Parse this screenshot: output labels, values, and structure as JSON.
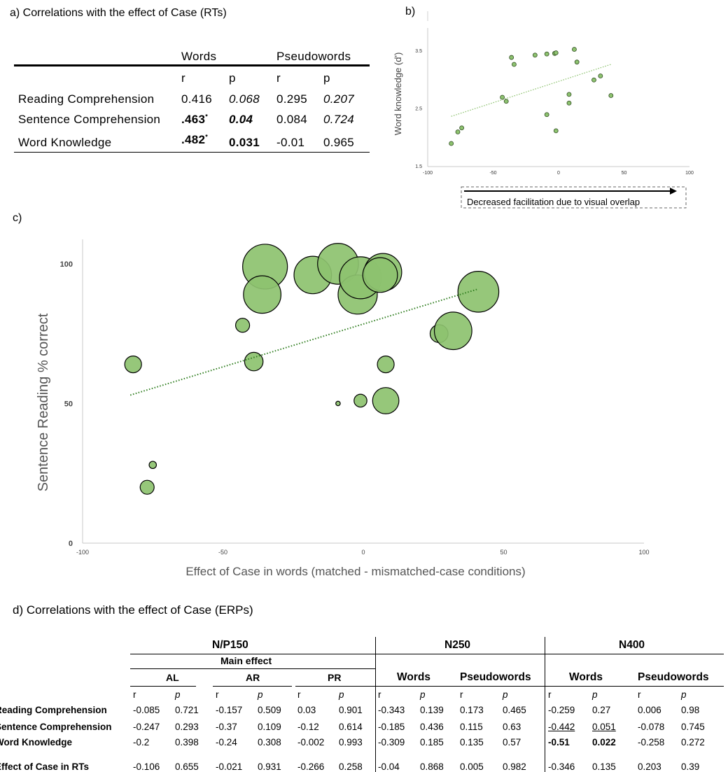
{
  "panel_a": {
    "title": "a) Correlations with the effect of Case (RTs)",
    "group_headers": [
      "Words",
      "Pseudowords"
    ],
    "col_headers": [
      "r",
      "p",
      "r",
      "p"
    ],
    "rows": [
      {
        "label": "Reading Comprehension",
        "cells": [
          "0.416",
          "0.068",
          "0.295",
          "0.207"
        ]
      },
      {
        "label": "Sentence Comprehension",
        "cells": [
          ".463",
          "0.04",
          "0.084",
          "0.724"
        ],
        "sup": "*"
      },
      {
        "label": "Word Knowledge",
        "cells": [
          ".482",
          "0.031",
          "-0.01",
          "0.965"
        ],
        "sup": "*"
      }
    ]
  },
  "panel_b": {
    "label": "b)",
    "ylabel": "Word knowledge (d')",
    "arrow_label": "Decreased facilitation due to visual overlap",
    "xticks": [
      "-100",
      "-50",
      "0",
      "50",
      "100"
    ],
    "yticks": [
      "1.5",
      "2.5",
      "3.5"
    ]
  },
  "panel_c": {
    "label": "c)",
    "ylabel": "Sentence  Reading % correct",
    "xlabel": "Effect of Case in words (matched - mismatched-case conditions)",
    "xticks": [
      "-100",
      "-50",
      "0",
      "50",
      "100"
    ],
    "yticks": [
      "0",
      "50",
      "100"
    ]
  },
  "chart_data": [
    {
      "type": "scatter",
      "title": "",
      "xlabel": "",
      "ylabel": "Word knowledge (d')",
      "xlim": [
        -100,
        100
      ],
      "ylim": [
        1.5,
        3.9
      ],
      "grid": false,
      "points": [
        {
          "x": -82,
          "y": 1.9
        },
        {
          "x": -77,
          "y": 2.1
        },
        {
          "x": -74,
          "y": 2.17
        },
        {
          "x": -43,
          "y": 2.7
        },
        {
          "x": -40,
          "y": 2.63
        },
        {
          "x": -36,
          "y": 3.39
        },
        {
          "x": -34,
          "y": 3.27
        },
        {
          "x": -18,
          "y": 3.43
        },
        {
          "x": -9,
          "y": 3.45
        },
        {
          "x": -3,
          "y": 3.46
        },
        {
          "x": -2,
          "y": 3.47
        },
        {
          "x": 12,
          "y": 3.53
        },
        {
          "x": 14,
          "y": 3.31
        },
        {
          "x": 27,
          "y": 3.0
        },
        {
          "x": 32,
          "y": 3.07
        },
        {
          "x": 40,
          "y": 2.73
        },
        {
          "x": 8,
          "y": 2.75
        },
        {
          "x": 8,
          "y": 2.6
        },
        {
          "x": -9,
          "y": 2.4
        },
        {
          "x": -2,
          "y": 2.12
        }
      ],
      "trendline": {
        "x": [
          -82,
          40
        ],
        "y": [
          2.37,
          3.27
        ]
      },
      "color": "#8dc26f"
    },
    {
      "type": "scatter",
      "title": "",
      "xlabel": "Effect of Case in words (matched - mismatched-case conditions)",
      "ylabel": "Sentence  Reading % correct",
      "xlim": [
        -100,
        100
      ],
      "ylim": [
        0,
        108
      ],
      "grid": false,
      "points": [
        {
          "x": -82,
          "y": 64,
          "size": 3
        },
        {
          "x": -77,
          "y": 20,
          "size": 2.5
        },
        {
          "x": -75,
          "y": 28,
          "size": 1.3
        },
        {
          "x": -43,
          "y": 78,
          "size": 2.5
        },
        {
          "x": -39,
          "y": 65,
          "size": 3.3
        },
        {
          "x": -35,
          "y": 99,
          "size": 8
        },
        {
          "x": -36,
          "y": 89,
          "size": 6.7
        },
        {
          "x": -18,
          "y": 96,
          "size": 6.7
        },
        {
          "x": -9,
          "y": 100,
          "size": 7.3
        },
        {
          "x": -2,
          "y": 89,
          "size": 7
        },
        {
          "x": -1,
          "y": 95,
          "size": 7.5
        },
        {
          "x": 7,
          "y": 97,
          "size": 6.7
        },
        {
          "x": 6,
          "y": 96,
          "size": 6.2
        },
        {
          "x": 8,
          "y": 64,
          "size": 3
        },
        {
          "x": 8,
          "y": 51,
          "size": 4.7
        },
        {
          "x": -1,
          "y": 51,
          "size": 2.3
        },
        {
          "x": -9,
          "y": 50,
          "size": 0.8
        },
        {
          "x": 27,
          "y": 75,
          "size": 3.2
        },
        {
          "x": 32,
          "y": 76,
          "size": 6.7
        },
        {
          "x": 41,
          "y": 90,
          "size": 7.3
        }
      ],
      "trendline": {
        "x": [
          -83,
          41
        ],
        "y": [
          53,
          91
        ]
      },
      "color": "#8dc26f"
    }
  ],
  "panel_d": {
    "title": "d) Correlations with the effect of Case (ERPs)",
    "groups": [
      "N/P150",
      "N250",
      "N400"
    ],
    "main_effect": "Main effect",
    "subgroups": [
      "AL",
      "AR",
      "PR",
      "Words",
      "Pseudowords",
      "Words",
      "Pseudowords"
    ],
    "col_headers": [
      "r",
      "p",
      "r",
      "p",
      "r",
      "p",
      "r",
      "p",
      "r",
      "p",
      "r",
      "p",
      "r",
      "p"
    ],
    "rows": [
      {
        "label": "Reading Comprehension",
        "cells": [
          "-0.085",
          "0.721",
          "-0.157",
          "0.509",
          "0.03",
          "0.901",
          "-0.343",
          "0.139",
          "0.173",
          "0.465",
          "-0.259",
          "0.27",
          "0.006",
          "0.98"
        ]
      },
      {
        "label": "Sentence Comprehension",
        "cells": [
          "-0.247",
          "0.293",
          "-0.37",
          "0.109",
          "-0.12",
          "0.614",
          "-0.185",
          "0.436",
          "0.115",
          "0.63",
          "-0.442",
          "0.051",
          "-0.078",
          "0.745"
        ]
      },
      {
        "label": "Word Knowledge",
        "cells": [
          "-0.2",
          "0.398",
          "-0.24",
          "0.308",
          "-0.002",
          "0.993",
          "-0.309",
          "0.185",
          "0.135",
          "0.57",
          "-0.51",
          "0.022",
          "-0.258",
          "0.272"
        ]
      },
      {
        "label": "Effect of Case in RTs",
        "cells": [
          "-0.106",
          "0.655",
          "-0.021",
          "0.931",
          "-0.266",
          "0.258",
          "-0.04",
          "0.868",
          "0.005",
          "0.982",
          "-0.346",
          "0.135",
          "0.203",
          "0.39"
        ]
      }
    ]
  }
}
